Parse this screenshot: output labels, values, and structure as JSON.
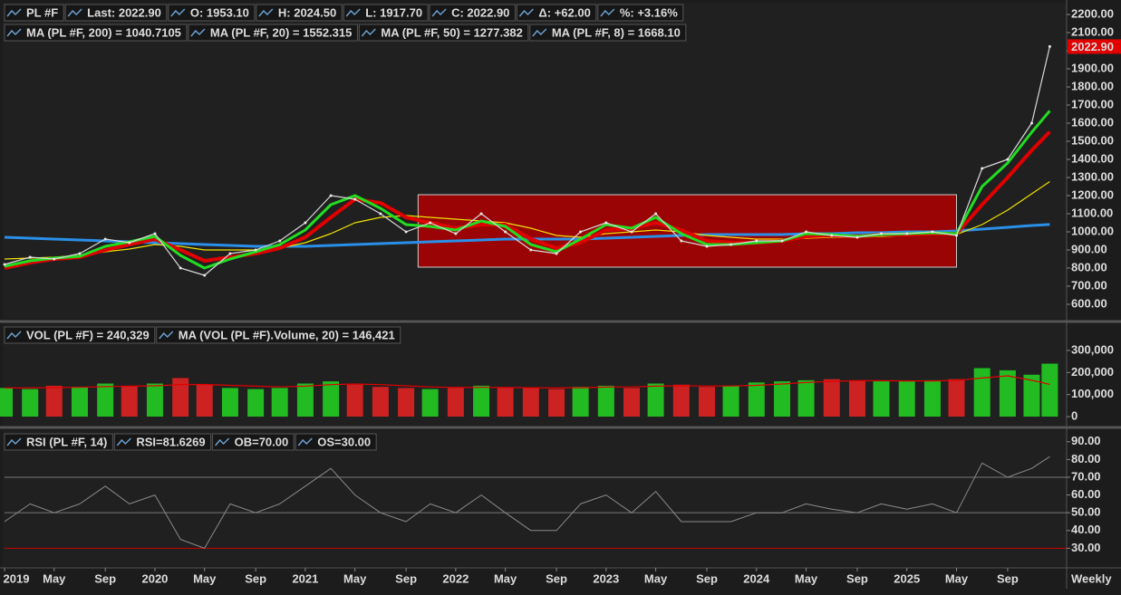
{
  "chart_data": [
    {
      "type": "line",
      "x": [
        2019,
        2019.17,
        2019.33,
        2019.5,
        2019.67,
        2019.83,
        2020,
        2020.17,
        2020.33,
        2020.5,
        2020.67,
        2020.83,
        2021,
        2021.17,
        2021.33,
        2021.5,
        2021.67,
        2021.83,
        2022,
        2022.17,
        2022.33,
        2022.5,
        2022.67,
        2022.83,
        2023,
        2023.17,
        2023.33,
        2023.5,
        2023.67,
        2023.83,
        2024,
        2024.17,
        2024.33,
        2024.5,
        2024.67,
        2024.83,
        2025,
        2025.17,
        2025.33,
        2025.5,
        2025.67,
        2025.83,
        2025.95
      ],
      "xlim": [
        2019,
        2026.02
      ],
      "ylim": [
        520,
        2240
      ],
      "yticks": [
        {
          "value": 600,
          "label": "600.00"
        },
        {
          "value": 700,
          "label": "700.00"
        },
        {
          "value": 800,
          "label": "800.00"
        },
        {
          "value": 900,
          "label": "900.00"
        },
        {
          "value": 1000,
          "label": "1000.00"
        },
        {
          "value": 1100,
          "label": "1100.00"
        },
        {
          "value": 1200,
          "label": "1200.00"
        },
        {
          "value": 1300,
          "label": "1300.00"
        },
        {
          "value": 1400,
          "label": "1400.00"
        },
        {
          "value": 1500,
          "label": "1500.00"
        },
        {
          "value": 1600,
          "label": "1600.00"
        },
        {
          "value": 1700,
          "label": "1700.00"
        },
        {
          "value": 1800,
          "label": "1800.00"
        },
        {
          "value": 1900,
          "label": "1900.00"
        },
        {
          "value": 2000,
          "label": "2000.00"
        },
        {
          "value": 2100,
          "label": "2100.00"
        },
        {
          "value": 2200,
          "label": "2200.00"
        }
      ],
      "quote_fields": [
        "Last: 2022.90",
        "O: 1953.10",
        "H: 2024.50",
        "L: 1917.70",
        "C: 2022.90",
        "Δ: +62.00",
        "%: +3.16%"
      ],
      "box": {
        "x": [
          2021.75,
          2025.33
        ],
        "y": [
          805,
          1205
        ],
        "color": "#b00000"
      },
      "series": [
        {
          "name": "PL #F",
          "color": "#d8d8d8",
          "values": [
            820,
            860,
            850,
            880,
            960,
            940,
            990,
            800,
            760,
            880,
            900,
            950,
            1050,
            1200,
            1180,
            1100,
            1000,
            1050,
            990,
            1100,
            1000,
            900,
            880,
            1000,
            1050,
            1000,
            1100,
            950,
            920,
            930,
            950,
            950,
            1000,
            980,
            970,
            990,
            990,
            1000,
            980,
            1350,
            1400,
            1600,
            2022.9
          ],
          "value_labels": [
            null,
            null,
            null,
            null,
            null,
            null,
            null,
            null,
            null,
            null,
            null,
            null,
            null,
            null,
            null,
            null,
            null,
            null,
            null,
            null,
            null,
            null,
            null,
            null,
            null,
            null,
            null,
            null,
            null,
            null,
            null,
            null,
            null,
            null,
            null,
            null,
            null,
            null,
            null,
            null,
            null,
            null,
            "2022.90"
          ]
        },
        {
          "name": "MA (PL #F, 200) = 1040.7105",
          "color": "#2a8fe8",
          "width": 3,
          "values": [
            970,
            965,
            960,
            955,
            950,
            945,
            940,
            935,
            930,
            925,
            920,
            920,
            920,
            925,
            930,
            935,
            940,
            945,
            950,
            955,
            960,
            960,
            960,
            960,
            965,
            970,
            975,
            980,
            985,
            985,
            985,
            985,
            990,
            990,
            995,
            995,
            1000,
            1000,
            1005,
            1015,
            1025,
            1035,
            1040.7105
          ]
        },
        {
          "name": "MA (PL #F, 20) = 1552.315",
          "color": "#e00000",
          "width": 4,
          "values": [
            800,
            830,
            850,
            860,
            900,
            930,
            960,
            900,
            840,
            860,
            880,
            910,
            970,
            1080,
            1180,
            1160,
            1080,
            1050,
            1020,
            1040,
            1040,
            960,
            910,
            940,
            1010,
            1020,
            1050,
            1010,
            950,
            940,
            940,
            950,
            975,
            980,
            975,
            985,
            985,
            990,
            990,
            1150,
            1300,
            1450,
            1552.315
          ]
        },
        {
          "name": "MA (PL #F, 50) = 1277.382",
          "color": "#f0e000",
          "width": 1.2,
          "values": [
            850,
            855,
            860,
            870,
            890,
            905,
            930,
            920,
            900,
            900,
            900,
            910,
            940,
            990,
            1050,
            1080,
            1090,
            1080,
            1070,
            1060,
            1050,
            1020,
            980,
            970,
            990,
            1000,
            1010,
            1000,
            980,
            970,
            960,
            960,
            965,
            970,
            970,
            975,
            980,
            985,
            985,
            1040,
            1120,
            1210,
            1277.382
          ]
        },
        {
          "name": "MA (PL #F, 8) = 1668.10",
          "color": "#22dd22",
          "width": 3,
          "values": [
            810,
            840,
            855,
            865,
            920,
            945,
            975,
            870,
            800,
            850,
            890,
            930,
            1010,
            1150,
            1200,
            1130,
            1040,
            1030,
            1010,
            1060,
            1030,
            930,
            890,
            960,
            1040,
            1020,
            1080,
            990,
            930,
            930,
            940,
            950,
            990,
            985,
            975,
            985,
            990,
            995,
            990,
            1250,
            1380,
            1550,
            1668.1
          ]
        }
      ]
    },
    {
      "type": "bar",
      "x": [
        2019,
        2019.17,
        2019.33,
        2019.5,
        2019.67,
        2019.83,
        2020,
        2020.17,
        2020.33,
        2020.5,
        2020.67,
        2020.83,
        2021,
        2021.17,
        2021.33,
        2021.5,
        2021.67,
        2021.83,
        2022,
        2022.17,
        2022.33,
        2022.5,
        2022.67,
        2022.83,
        2023,
        2023.17,
        2023.33,
        2023.5,
        2023.67,
        2023.83,
        2024,
        2024.17,
        2024.33,
        2024.5,
        2024.67,
        2024.83,
        2025,
        2025.17,
        2025.33,
        2025.5,
        2025.67,
        2025.83,
        2025.95
      ],
      "xlim": [
        2019,
        2026.02
      ],
      "ylim": [
        -41000,
        411000
      ],
      "yticks": [
        0,
        {
          "value": 100000,
          "label": "100,000"
        },
        {
          "value": 200000,
          "label": "200,000"
        },
        {
          "value": 300000,
          "label": "300,000"
        }
      ],
      "up_color": "#22bb22",
      "down_color": "#cc2222",
      "series": [
        {
          "name": "VOL (PL #F) = 240,329",
          "color": "#22bb22",
          "values": [
            130000,
            125000,
            140000,
            135000,
            150000,
            140000,
            150000,
            175000,
            145000,
            130000,
            125000,
            130000,
            150000,
            160000,
            145000,
            135000,
            130000,
            125000,
            130000,
            140000,
            130000,
            130000,
            125000,
            135000,
            140000,
            130000,
            150000,
            145000,
            135000,
            140000,
            155000,
            160000,
            165000,
            170000,
            165000,
            160000,
            160000,
            165000,
            170000,
            220000,
            210000,
            190000,
            240329
          ]
        },
        {
          "name": "MA (VOL (PL #F).Volume, 20) = 146,421",
          "color": "#e00000",
          "values": [
            130000,
            130000,
            132000,
            133000,
            136000,
            138000,
            140000,
            145000,
            146000,
            142000,
            138000,
            135000,
            138000,
            145000,
            148000,
            145000,
            140000,
            135000,
            132000,
            133000,
            132000,
            131000,
            130000,
            131000,
            134000,
            135000,
            138000,
            140000,
            139000,
            139000,
            142000,
            148000,
            155000,
            160000,
            163000,
            163000,
            162000,
            162000,
            164000,
            175000,
            185000,
            165000,
            146421
          ]
        }
      ]
    },
    {
      "type": "line",
      "x": [
        2019,
        2019.17,
        2019.33,
        2019.5,
        2019.67,
        2019.83,
        2020,
        2020.17,
        2020.33,
        2020.5,
        2020.67,
        2020.83,
        2021,
        2021.17,
        2021.33,
        2021.5,
        2021.67,
        2021.83,
        2022,
        2022.17,
        2022.33,
        2022.5,
        2022.67,
        2022.83,
        2023,
        2023.17,
        2023.33,
        2023.5,
        2023.67,
        2023.83,
        2024,
        2024.17,
        2024.33,
        2024.5,
        2024.67,
        2024.83,
        2025,
        2025.17,
        2025.33,
        2025.5,
        2025.67,
        2025.83,
        2025.95
      ],
      "xlim": [
        2019,
        2026.02
      ],
      "ylim": [
        20,
        96
      ],
      "yticks": [
        {
          "value": 30,
          "label": "30.00"
        },
        {
          "value": 40,
          "label": "40.00"
        },
        {
          "value": 50,
          "label": "50.00"
        },
        {
          "value": 60,
          "label": "60.00"
        },
        {
          "value": 70,
          "label": "70.00"
        },
        {
          "value": 80,
          "label": "80.00"
        },
        {
          "value": 90,
          "label": "90.00"
        }
      ],
      "xticks": [
        {
          "value": 2019,
          "label": "2019"
        },
        {
          "value": 2019.33,
          "label": "May"
        },
        {
          "value": 2019.67,
          "label": "Sep"
        },
        {
          "value": 2020,
          "label": "2020"
        },
        {
          "value": 2020.33,
          "label": "May"
        },
        {
          "value": 2020.67,
          "label": "Sep"
        },
        {
          "value": 2021,
          "label": "2021"
        },
        {
          "value": 2021.33,
          "label": "May"
        },
        {
          "value": 2021.67,
          "label": "Sep"
        },
        {
          "value": 2022,
          "label": "2022"
        },
        {
          "value": 2022.33,
          "label": "May"
        },
        {
          "value": 2022.67,
          "label": "Sep"
        },
        {
          "value": 2023,
          "label": "2023"
        },
        {
          "value": 2023.33,
          "label": "May"
        },
        {
          "value": 2023.67,
          "label": "Sep"
        },
        {
          "value": 2024,
          "label": "2024"
        },
        {
          "value": 2024.33,
          "label": "May"
        },
        {
          "value": 2024.67,
          "label": "Sep"
        },
        {
          "value": 2025,
          "label": "2025"
        },
        {
          "value": 2025.33,
          "label": "May"
        },
        {
          "value": 2025.67,
          "label": "Sep"
        }
      ],
      "period": "Weekly",
      "header_fields": [
        {
          "text": "RSI=81.6269",
          "color": "#cccccc"
        },
        {
          "text": "OB=70.00",
          "color": "#cccccc"
        },
        {
          "text": "OS=30.00",
          "color": "#ff3030"
        }
      ],
      "levels": [
        {
          "value": 70,
          "color": "#777777"
        },
        {
          "value": 50,
          "color": "#777777"
        },
        {
          "value": 30,
          "color": "#cc0000"
        }
      ],
      "series": [
        {
          "name": "RSI (PL #F, 14)",
          "color": "#8a8a8a",
          "values": [
            45,
            55,
            50,
            55,
            65,
            55,
            60,
            35,
            30,
            55,
            50,
            55,
            65,
            75,
            60,
            50,
            45,
            55,
            50,
            60,
            50,
            40,
            40,
            55,
            60,
            50,
            62,
            45,
            45,
            45,
            50,
            50,
            55,
            52,
            50,
            55,
            52,
            55,
            50,
            78,
            70,
            75,
            81.6269
          ]
        }
      ]
    }
  ]
}
